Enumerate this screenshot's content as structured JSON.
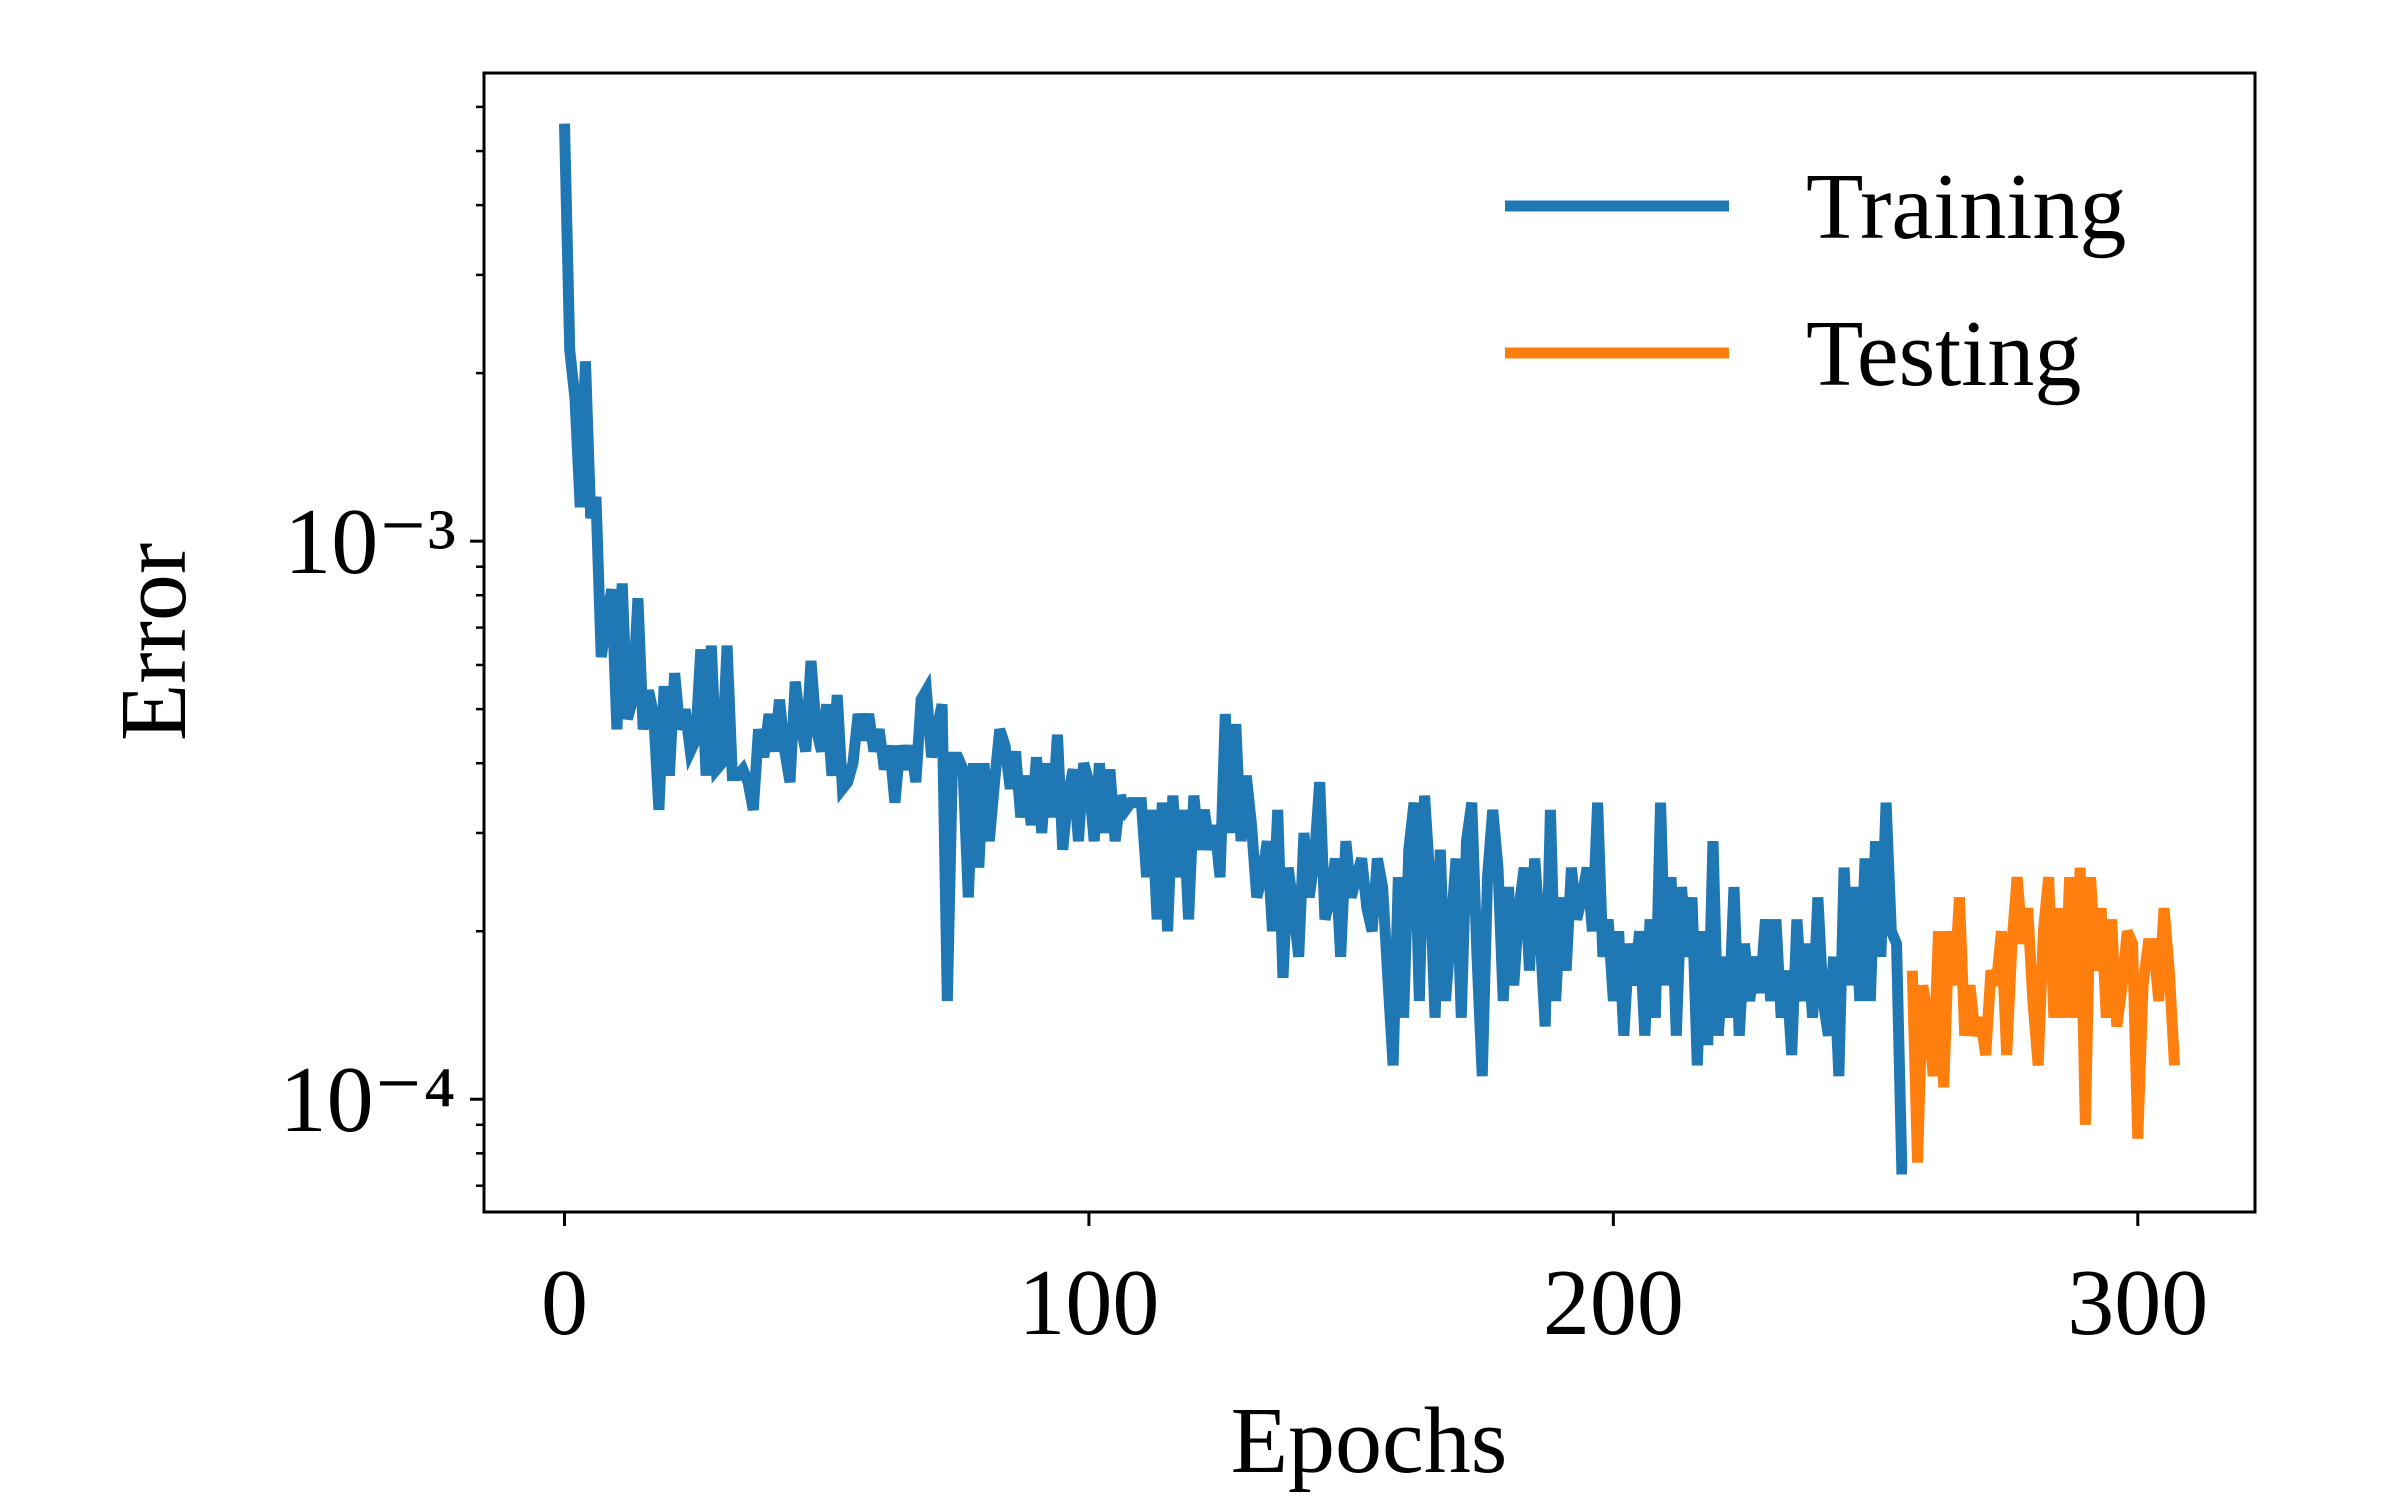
{
  "chart_data": {
    "type": "line",
    "xlabel": "Epochs",
    "ylabel": "Error",
    "xlim": [
      -15.35,
      322.35
    ],
    "xticks": [
      0,
      100,
      200,
      300
    ],
    "ylim": [
      6.28e-05,
      0.0069
    ],
    "yscale": "log",
    "yticks": [
      {
        "value": 0.0001,
        "label": "10⁻⁴"
      },
      {
        "value": 0.001,
        "label": "10⁻³"
      }
    ],
    "yminorticks": [
      7e-05,
      8e-05,
      9e-05,
      0.0002,
      0.0003,
      0.0004,
      0.0005,
      0.0006,
      0.0007,
      0.0008,
      0.0009,
      0.002,
      0.003,
      0.004,
      0.005,
      0.006
    ],
    "legend": "upper right",
    "grid": false,
    "series": [
      {
        "name": "Training",
        "color": "#1f77b4",
        "x": [
          0,
          1,
          2,
          3,
          4,
          5,
          6,
          7,
          8,
          9,
          10,
          11,
          12,
          13,
          14,
          15,
          16,
          17,
          18,
          19,
          20,
          21,
          22,
          23,
          24,
          25,
          26,
          27,
          28,
          29,
          30,
          31,
          32,
          33,
          34,
          35,
          36,
          37,
          38,
          39,
          40,
          41,
          42,
          43,
          44,
          45,
          46,
          47,
          48,
          49,
          50,
          51,
          52,
          53,
          54,
          55,
          56,
          57,
          58,
          59,
          60,
          61,
          62,
          63,
          64,
          65,
          66,
          67,
          68,
          69,
          70,
          71,
          72,
          73,
          74,
          75,
          76,
          77,
          78,
          79,
          80,
          81,
          82,
          83,
          84,
          85,
          86,
          87,
          88,
          89,
          90,
          91,
          92,
          93,
          94,
          95,
          96,
          97,
          98,
          99,
          100,
          101,
          102,
          103,
          104,
          105,
          106,
          107,
          108,
          109,
          110,
          111,
          112,
          113,
          114,
          115,
          116,
          117,
          118,
          119,
          120,
          121,
          122,
          123,
          124,
          125,
          126,
          127,
          128,
          129,
          130,
          131,
          132,
          133,
          134,
          135,
          136,
          137,
          138,
          139,
          140,
          141,
          142,
          143,
          144,
          145,
          146,
          147,
          148,
          149,
          150,
          151,
          152,
          153,
          154,
          155,
          156,
          157,
          158,
          159,
          160,
          161,
          162,
          163,
          164,
          165,
          166,
          167,
          168,
          169,
          170,
          171,
          172,
          173,
          174,
          175,
          176,
          177,
          178,
          179,
          180,
          181,
          182,
          183,
          184,
          185,
          186,
          187,
          188,
          189,
          190,
          191,
          192,
          193,
          194,
          195,
          196,
          197,
          198,
          199,
          200,
          201,
          202,
          203,
          204,
          205,
          206,
          207,
          208,
          209,
          210,
          211,
          212,
          213,
          214,
          215,
          216,
          217,
          218,
          219,
          220,
          221,
          222,
          223,
          224,
          225,
          226,
          227,
          228,
          229,
          230,
          231,
          232,
          233,
          234,
          235,
          236,
          237,
          238,
          239,
          240,
          241,
          242,
          243,
          244,
          245,
          246,
          247,
          248,
          249,
          250,
          251,
          252,
          253,
          254,
          255,
          256
        ],
        "values": [
          0.0056,
          0.0022,
          0.0018,
          0.00115,
          0.0021,
          0.0011,
          0.0012,
          0.00062,
          0.00072,
          0.00082,
          0.00046,
          0.00084,
          0.00048,
          0.00052,
          0.00079,
          0.00046,
          0.00054,
          0.00049,
          0.00033,
          0.00055,
          0.00038,
          0.00058,
          0.00046,
          0.0005,
          0.00042,
          0.00044,
          0.00064,
          0.00038,
          0.00065,
          0.00039,
          0.0004,
          0.00065,
          0.00038,
          0.00038,
          0.00039,
          0.00037,
          0.00033,
          0.00046,
          0.00041,
          0.00049,
          0.00042,
          0.00052,
          0.00042,
          0.00037,
          0.00056,
          0.00047,
          0.00042,
          0.00061,
          0.00046,
          0.00042,
          0.00051,
          0.00038,
          0.00053,
          0.00036,
          0.00037,
          0.0004,
          0.00049,
          0.00044,
          0.00049,
          0.00042,
          0.00046,
          0.00039,
          0.00043,
          0.00034,
          0.00043,
          0.00039,
          0.00043,
          0.00037,
          0.00052,
          0.00054,
          0.00041,
          0.00046,
          0.00051,
          0.00015,
          0.00041,
          0.00041,
          0.00039,
          0.00023,
          0.0004,
          0.00026,
          0.0004,
          0.00029,
          0.00037,
          0.00046,
          0.00043,
          0.00036,
          0.00042,
          0.00032,
          0.00038,
          0.00031,
          0.00041,
          0.0003,
          0.0004,
          0.00032,
          0.00045,
          0.00028,
          0.00035,
          0.00039,
          0.00029,
          0.0004,
          0.00037,
          0.00029,
          0.0004,
          0.0003,
          0.00039,
          0.00029,
          0.00035,
          0.00033,
          0.00034,
          0.00034,
          0.00034,
          0.00025,
          0.00033,
          0.00021,
          0.00034,
          0.0002,
          0.00035,
          0.00025,
          0.00033,
          0.00021,
          0.00035,
          0.00028,
          0.00033,
          0.00028,
          0.00031,
          0.00025,
          0.00049,
          0.0003,
          0.00047,
          0.00029,
          0.00038,
          0.00031,
          0.00023,
          0.00025,
          0.00029,
          0.0002,
          0.00033,
          0.000165,
          0.00026,
          0.00022,
          0.00018,
          0.0003,
          0.00023,
          0.00027,
          0.00037,
          0.00021,
          0.00023,
          0.00027,
          0.00018,
          0.00029,
          0.00023,
          0.00025,
          0.00027,
          0.00022,
          0.0002,
          0.00027,
          0.00024,
          0.000165,
          0.000115,
          0.00025,
          0.00014,
          0.00028,
          0.00034,
          0.00015,
          0.00035,
          0.00025,
          0.00014,
          0.00028,
          0.00015,
          0.0002,
          0.00027,
          0.00014,
          0.00029,
          0.00034,
          0.00018,
          0.00011,
          0.00025,
          0.00033,
          0.00026,
          0.00015,
          0.00024,
          0.00016,
          0.00022,
          0.00026,
          0.00017,
          0.00027,
          0.0002,
          0.000135,
          0.00033,
          0.00015,
          0.00023,
          0.00017,
          0.00026,
          0.00021,
          0.00023,
          0.00026,
          0.0002,
          0.00034,
          0.00018,
          0.00021,
          0.00015,
          0.0002,
          0.00013,
          0.00019,
          0.00016,
          0.0002,
          0.00013,
          0.00021,
          0.00014,
          0.00034,
          0.00016,
          0.00025,
          0.00013,
          0.00024,
          0.00018,
          0.00023,
          0.000115,
          0.0002,
          0.000125,
          0.00029,
          0.00013,
          0.00018,
          0.00014,
          0.00024,
          0.00013,
          0.00019,
          0.00015,
          0.00018,
          0.000155,
          0.00021,
          0.00015,
          0.00021,
          0.00014,
          0.00017,
          0.00012,
          0.00021,
          0.00015,
          0.00019,
          0.00014,
          0.00023,
          0.00015,
          0.00013,
          0.00018,
          0.00011,
          0.00026,
          0.00016,
          0.00024,
          0.00015,
          0.00027,
          0.00015,
          0.00029,
          0.00018,
          0.00034,
          0.0002,
          0.00019,
          7.5e-05,
          7.5e-05
        ]
      },
      {
        "name": "Testing",
        "color": "#ff7f0e",
        "x": [
          257,
          258,
          259,
          260,
          261,
          262,
          263,
          264,
          265,
          266,
          267,
          268,
          269,
          270,
          271,
          272,
          273,
          274,
          275,
          276,
          277,
          278,
          279,
          280,
          281,
          282,
          283,
          284,
          285,
          286,
          287,
          288,
          289,
          290,
          291,
          292,
          293,
          294,
          295,
          296,
          297,
          298,
          299,
          300,
          301,
          302,
          303,
          304,
          305,
          306,
          307
        ],
        "values": [
          0.00017,
          7.7e-05,
          0.00016,
          0.00014,
          0.00011,
          0.0002,
          0.000105,
          0.0002,
          0.00016,
          0.00023,
          0.00013,
          0.00016,
          0.00013,
          0.00014,
          0.00012,
          0.00017,
          0.00016,
          0.0002,
          0.00012,
          0.00019,
          0.00025,
          0.00019,
          0.00022,
          0.00015,
          0.000115,
          0.0002,
          0.00025,
          0.00014,
          0.00022,
          0.00014,
          0.00025,
          0.00014,
          0.00026,
          9e-05,
          0.00025,
          0.00017,
          0.00022,
          0.00014,
          0.00021,
          0.000135,
          0.00016,
          0.0002,
          0.00019,
          8.5e-05,
          0.00016,
          0.00019,
          0.00019,
          0.00015,
          0.00022,
          0.00017,
          0.000115
        ]
      }
    ]
  }
}
